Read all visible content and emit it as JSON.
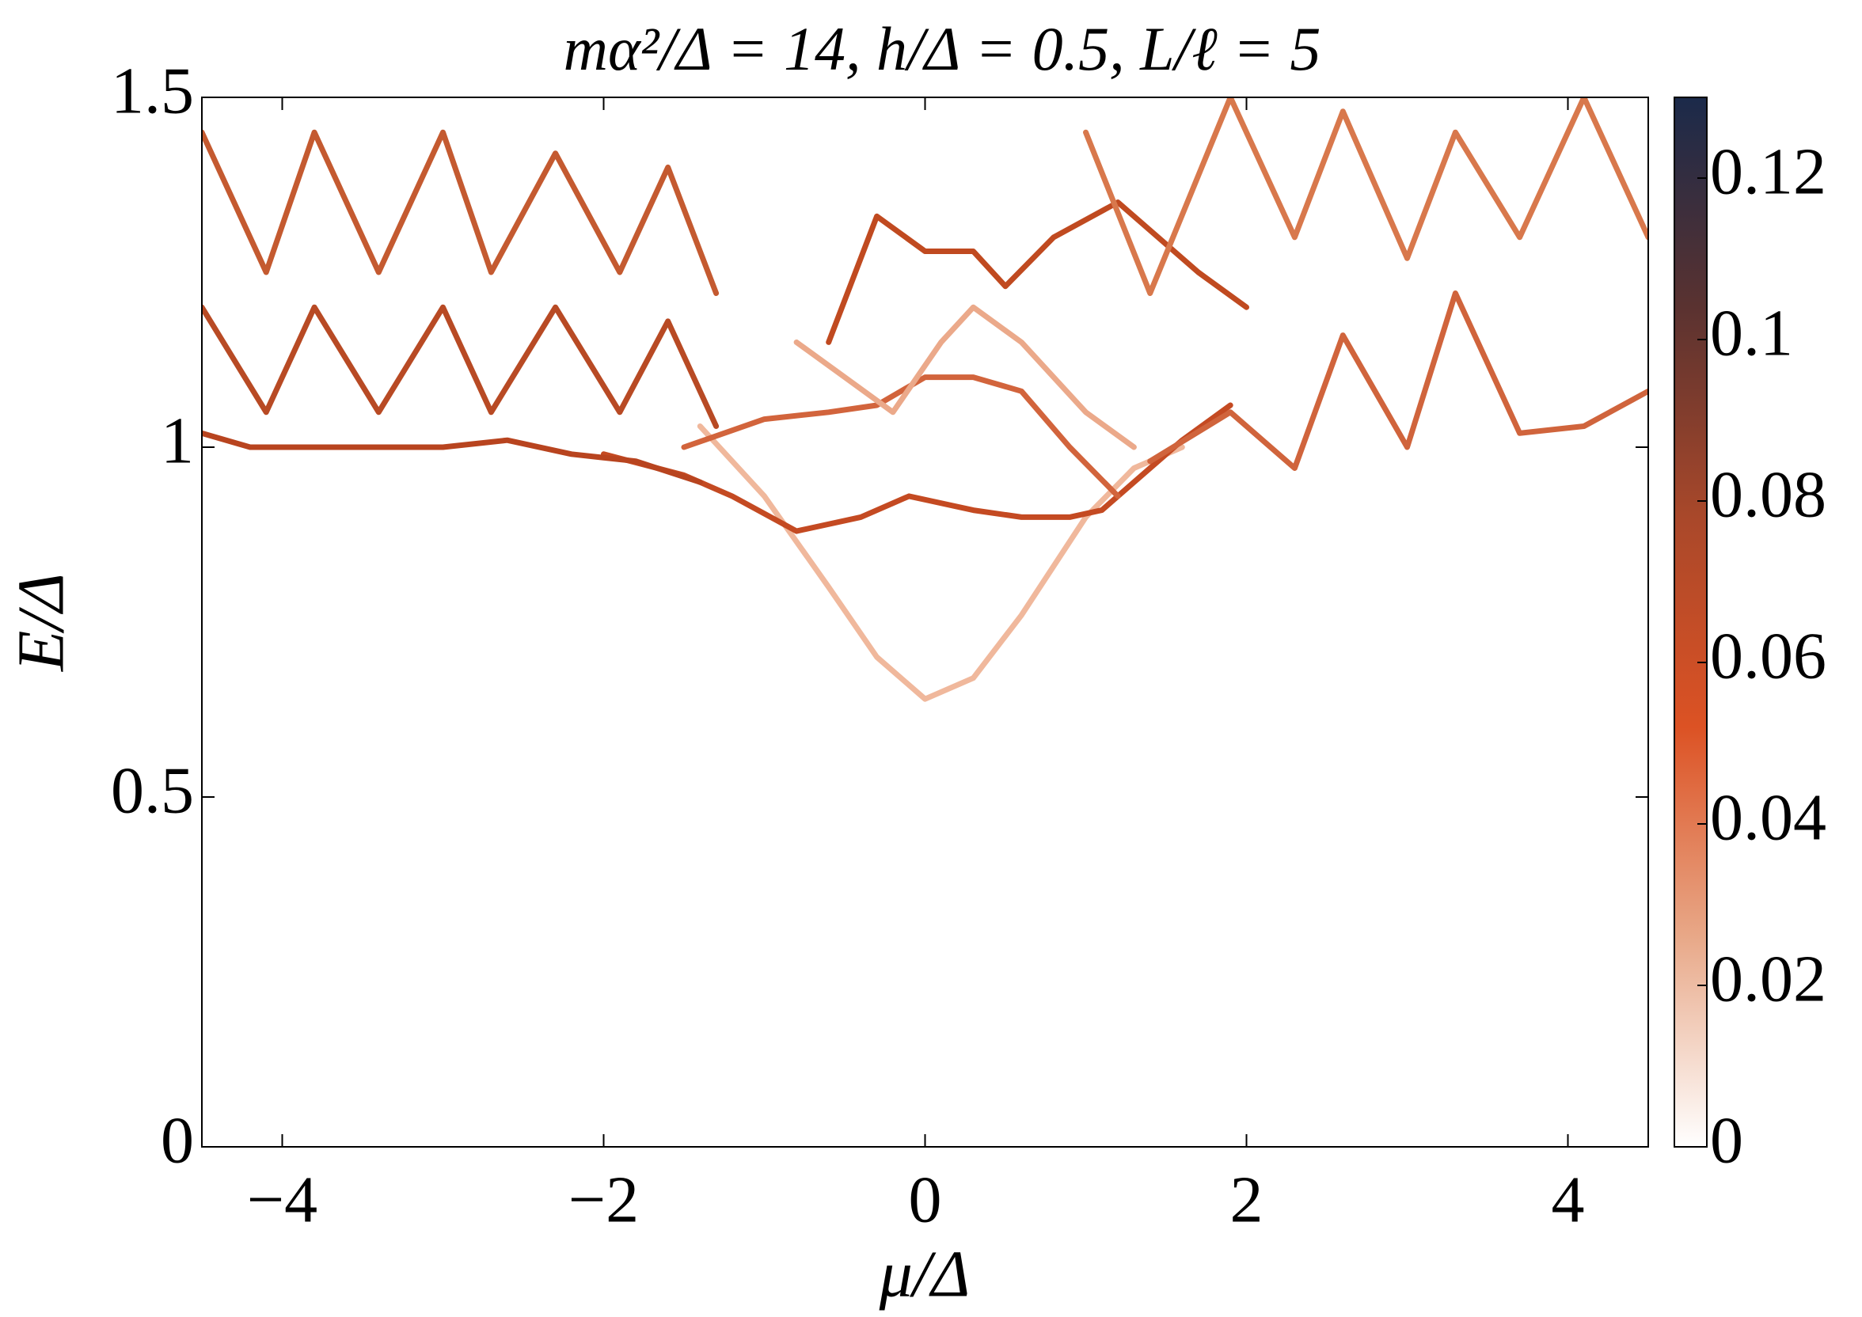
{
  "chart_data": {
    "type": "line",
    "title": "mα²/Δ = 14, h/Δ = 0.5, L/ℓ = 5",
    "x_label": "μ/Δ",
    "y_label": "E/Δ",
    "xlim": [
      -4.5,
      4.5
    ],
    "ylim": [
      0,
      1.5
    ],
    "xticks": [
      {
        "value": -4,
        "label": "−4"
      },
      {
        "value": -2,
        "label": "−2"
      },
      0,
      2,
      4
    ],
    "yticks": [
      0,
      0.5,
      1,
      1.5
    ],
    "colorbar": {
      "lim": [
        0,
        0.13
      ],
      "ticks": [
        0,
        0.02,
        0.04,
        0.06,
        0.08,
        0.1,
        0.12
      ],
      "colors": [
        "#ffffff",
        "#e8a888",
        "#dc5224",
        "#a9482a",
        "#5a3230",
        "#1b2a4a"
      ]
    },
    "series": [
      {
        "color": "#f0b89c",
        "x": [
          -1.4,
          -1.0,
          -0.6,
          -0.3,
          0,
          0.3,
          0.6,
          1.0,
          1.3,
          1.6
        ],
        "values": [
          1.03,
          0.93,
          0.8,
          0.7,
          0.64,
          0.67,
          0.76,
          0.9,
          0.97,
          1.0
        ]
      },
      {
        "color": "#c44a22",
        "x": [
          -2.0,
          -1.5,
          -1.2,
          -0.8,
          -0.4,
          -0.1,
          0.3,
          0.6,
          0.9,
          1.1,
          1.3,
          1.6,
          1.9
        ],
        "values": [
          0.99,
          0.96,
          0.93,
          0.88,
          0.9,
          0.93,
          0.91,
          0.9,
          0.9,
          0.91,
          0.95,
          1.01,
          1.06
        ]
      },
      {
        "color": "#b8441f",
        "x": [
          -4.5,
          -4.2,
          -3.8,
          -3.4,
          -3.0,
          -2.6,
          -2.2,
          -1.8,
          -1.4
        ],
        "values": [
          1.02,
          1.0,
          1.0,
          1.0,
          1.0,
          1.01,
          0.99,
          0.98,
          0.95
        ]
      },
      {
        "color": "#d2643c",
        "x": [
          -1.5,
          -1.0,
          -0.6,
          -0.3,
          0,
          0.3,
          0.6,
          0.9,
          1.2
        ],
        "values": [
          1.0,
          1.04,
          1.05,
          1.06,
          1.1,
          1.1,
          1.08,
          1.0,
          0.93
        ]
      },
      {
        "color": "#eba98a",
        "x": [
          -0.8,
          -0.5,
          -0.2,
          0.1,
          0.3,
          0.6,
          1.0,
          1.3
        ],
        "values": [
          1.15,
          1.1,
          1.05,
          1.15,
          1.2,
          1.15,
          1.05,
          1.0
        ]
      },
      {
        "color": "#c04a20",
        "x": [
          -0.6,
          -0.3,
          0,
          0.3,
          0.5,
          0.8,
          1.2,
          1.7,
          2.0
        ],
        "values": [
          1.15,
          1.33,
          1.28,
          1.28,
          1.23,
          1.3,
          1.35,
          1.25,
          1.2
        ]
      },
      {
        "color": "#d0643c",
        "x": [
          1.4,
          1.9,
          2.3,
          2.6,
          3.0,
          3.3,
          3.7,
          4.1,
          4.5
        ],
        "values": [
          0.98,
          1.05,
          0.97,
          1.16,
          1.0,
          1.22,
          1.02,
          1.03,
          1.08
        ]
      },
      {
        "color": "#b84a24",
        "x": [
          -4.5,
          -4.1,
          -3.8,
          -3.4,
          -3.0,
          -2.7,
          -2.3,
          -1.9,
          -1.6,
          -1.3
        ],
        "values": [
          1.2,
          1.05,
          1.2,
          1.05,
          1.2,
          1.05,
          1.2,
          1.05,
          1.18,
          1.03
        ]
      },
      {
        "color": "#c45a30",
        "x": [
          -4.5,
          -4.1,
          -3.8,
          -3.4,
          -3.0,
          -2.7,
          -2.3,
          -1.9,
          -1.6,
          -1.3
        ],
        "values": [
          1.45,
          1.25,
          1.45,
          1.25,
          1.45,
          1.25,
          1.42,
          1.25,
          1.4,
          1.22
        ]
      },
      {
        "color": "#d8784c",
        "x": [
          1.0,
          1.4,
          1.9,
          2.3,
          2.6,
          3.0,
          3.3,
          3.7,
          4.1,
          4.5
        ],
        "values": [
          1.45,
          1.22,
          1.5,
          1.3,
          1.48,
          1.27,
          1.45,
          1.3,
          1.5,
          1.3
        ]
      }
    ]
  }
}
